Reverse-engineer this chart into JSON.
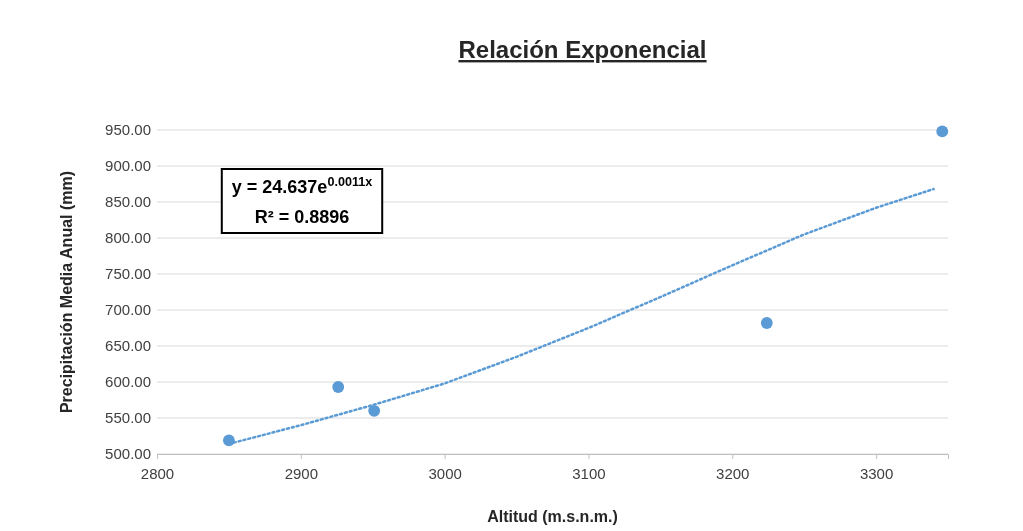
{
  "chart_data": {
    "type": "scatter",
    "title": "Relación Exponencial",
    "xlabel": "Altitud (m.s.n.m.)",
    "ylabel": "Precipitación Media Anual (mm)",
    "xlim": [
      2800,
      3350
    ],
    "xticks": [
      2800,
      2900,
      3000,
      3100,
      3200,
      3300
    ],
    "ylim": [
      500,
      950
    ],
    "yticks": [
      {
        "value": 500,
        "label": "500.00"
      },
      {
        "value": 550,
        "label": "550.00"
      },
      {
        "value": 600,
        "label": "600.00"
      },
      {
        "value": 650,
        "label": "650.00"
      },
      {
        "value": 700,
        "label": "700.00"
      },
      {
        "value": 750,
        "label": "750.00"
      },
      {
        "value": 800,
        "label": "800.00"
      },
      {
        "value": 850,
        "label": "850.00"
      },
      {
        "value": 900,
        "label": "900.00"
      },
      {
        "value": 950,
        "label": "950.00"
      }
    ],
    "grid": "y",
    "marker": "circle",
    "series": [
      {
        "color": "#5b9bd5",
        "x": [
          2850,
          2926,
          2951,
          3224,
          3346
        ],
        "values": [
          519,
          593,
          560,
          682,
          948
        ]
      },
      {
        "type": "line",
        "color": "#5b9bd5",
        "line_style": "dotted",
        "marker": "none",
        "x": [
          2850,
          2900,
          2950,
          3000,
          3050,
          3100,
          3150,
          3200,
          3250,
          3300,
          3340
        ],
        "values": [
          514,
          540,
          568,
          598,
          635,
          675,
          718,
          762,
          805,
          842,
          868
        ]
      }
    ],
    "annotations": [
      "y = 24.637e$^{0.0011x}$",
      "R² = 0.8896"
    ]
  }
}
